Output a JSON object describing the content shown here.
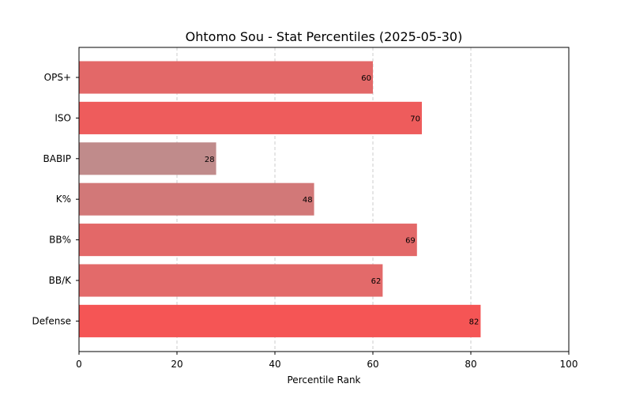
{
  "chart_data": {
    "type": "bar",
    "orientation": "horizontal",
    "title": "Ohtomo Sou - Stat Percentiles (2025-05-30)",
    "xlabel": "Percentile Rank",
    "ylabel": "",
    "xlim": [
      0,
      100
    ],
    "xticks": [
      0,
      20,
      40,
      60,
      80,
      100
    ],
    "grid": "x-dashed",
    "categories": [
      "OPS+",
      "ISO",
      "BABIP",
      "K%",
      "BB%",
      "BB/K",
      "Defense"
    ],
    "values": [
      60,
      70,
      28,
      48,
      69,
      62,
      82
    ],
    "colors": [
      "#e36868",
      "#ee5c5c",
      "#c08b8b",
      "#d27878",
      "#e36868",
      "#e36a6a",
      "#f55555"
    ]
  }
}
